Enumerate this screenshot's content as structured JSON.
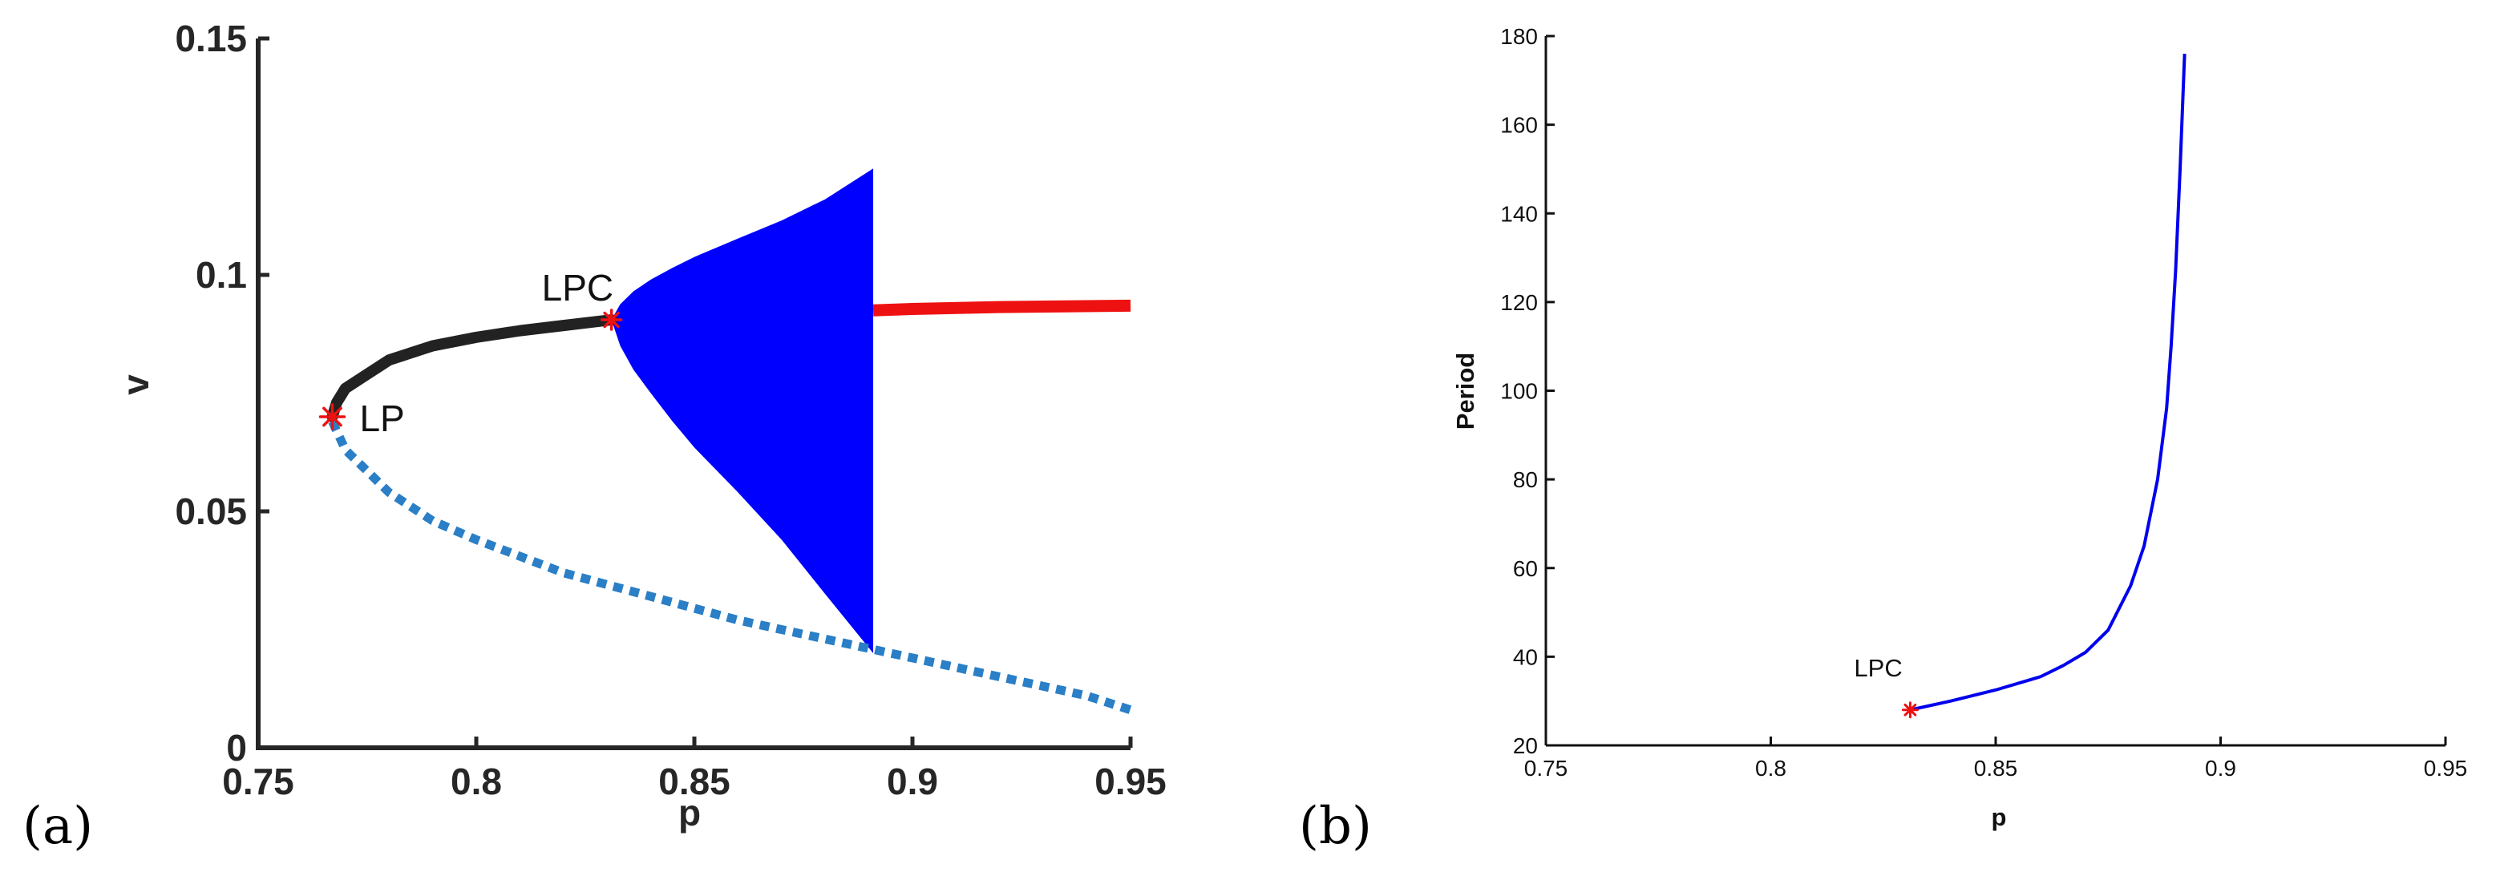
{
  "chart_data": [
    {
      "type": "line",
      "panel_label": "(a)",
      "xlabel": "p",
      "ylabel": "v",
      "xlim": [
        0.75,
        0.95
      ],
      "ylim": [
        0,
        0.15
      ],
      "xticks": [
        "0.75",
        "0.8",
        "0.85",
        "0.9",
        "0.95"
      ],
      "yticks": [
        "0",
        "0.05",
        "0.1",
        "0.15"
      ],
      "grid": false,
      "series": [
        {
          "style": "solid-black-thick",
          "color": "#222222",
          "x": [
            0.767,
            0.768,
            0.77,
            0.775,
            0.78,
            0.79,
            0.8,
            0.81,
            0.82,
            0.831
          ],
          "y": [
            0.07,
            0.073,
            0.076,
            0.079,
            0.082,
            0.085,
            0.0868,
            0.0882,
            0.0893,
            0.0905
          ]
        },
        {
          "style": "dashed-blue",
          "color": "#2a7fc6",
          "x": [
            0.767,
            0.77,
            0.78,
            0.79,
            0.8,
            0.82,
            0.84,
            0.86,
            0.88,
            0.9,
            0.92,
            0.94,
            0.95
          ],
          "y": [
            0.069,
            0.063,
            0.054,
            0.048,
            0.044,
            0.037,
            0.032,
            0.027,
            0.023,
            0.019,
            0.015,
            0.011,
            0.008
          ]
        },
        {
          "style": "solid-red-thick",
          "color": "#ee1111",
          "x": [
            0.891,
            0.9,
            0.92,
            0.95
          ],
          "y": [
            0.0925,
            0.0928,
            0.0932,
            0.0935
          ]
        },
        {
          "style": "filled-blue-envelope",
          "color": "#0000ff",
          "x": [
            0.831,
            0.833,
            0.836,
            0.84,
            0.845,
            0.85,
            0.86,
            0.87,
            0.88,
            0.891
          ],
          "y_upper": [
            0.0905,
            0.0938,
            0.0965,
            0.099,
            0.1015,
            0.1038,
            0.1077,
            0.1115,
            0.116,
            0.1225
          ],
          "y_lower": [
            0.0905,
            0.085,
            0.08,
            0.075,
            0.069,
            0.0635,
            0.054,
            0.044,
            0.0325,
            0.02
          ]
        }
      ],
      "points": [
        {
          "label": "LP",
          "x": 0.767,
          "y": 0.07,
          "color": "#ee1111"
        },
        {
          "label": "LPC",
          "x": 0.831,
          "y": 0.0905,
          "color": "#ee1111"
        }
      ]
    },
    {
      "type": "line",
      "panel_label": "(b)",
      "xlabel": "p",
      "ylabel": "Period",
      "xlim": [
        0.75,
        0.95
      ],
      "ylim": [
        20,
        180
      ],
      "xticks": [
        "0.75",
        "0.8",
        "0.85",
        "0.9",
        "0.95"
      ],
      "yticks": [
        "20",
        "40",
        "60",
        "80",
        "100",
        "120",
        "140",
        "160",
        "180"
      ],
      "grid": false,
      "series": [
        {
          "color": "#0000ee",
          "x": [
            0.831,
            0.84,
            0.85,
            0.86,
            0.865,
            0.87,
            0.875,
            0.88,
            0.883,
            0.886,
            0.888,
            0.889,
            0.89,
            0.891,
            0.892
          ],
          "y": [
            28,
            30,
            32.5,
            35.5,
            38,
            41,
            46,
            56,
            65,
            80,
            96,
            110,
            127,
            150,
            176
          ]
        }
      ],
      "points": [
        {
          "label": "LPC",
          "x": 0.831,
          "y": 28,
          "color": "#ee1111"
        }
      ]
    }
  ]
}
